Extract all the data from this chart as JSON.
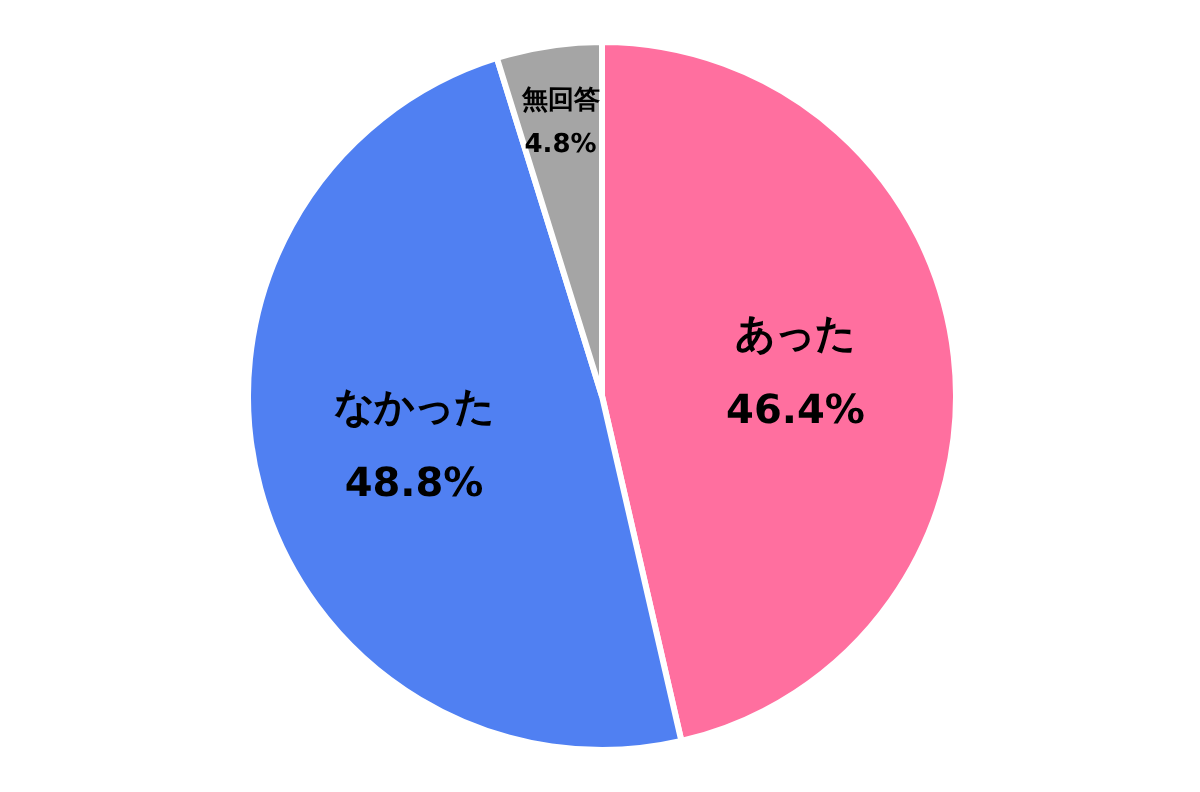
{
  "chart_data": {
    "type": "pie",
    "categories": [
      "あった",
      "なかった",
      "無回答"
    ],
    "values": [
      46.4,
      48.8,
      4.8
    ],
    "value_labels": [
      "46.4%",
      "48.8%",
      "4.8%"
    ],
    "colors": [
      "#ff6f9f",
      "#5080f2",
      "#a5a5a5"
    ]
  }
}
